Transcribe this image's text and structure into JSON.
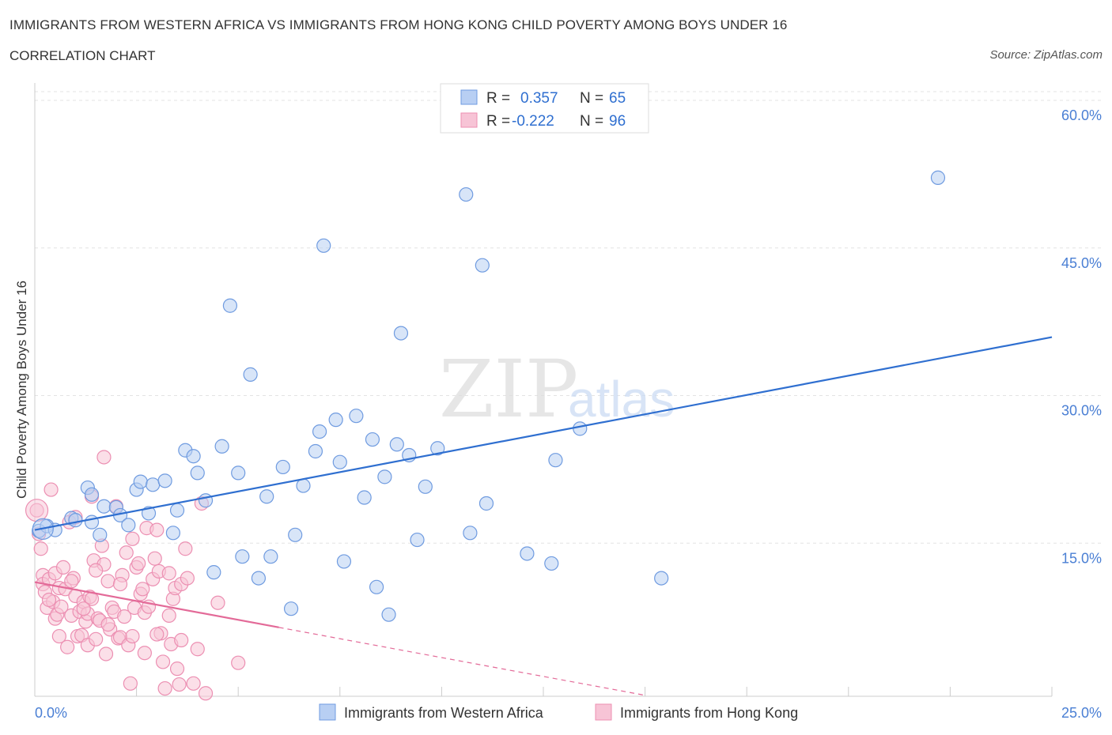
{
  "title": "IMMIGRANTS FROM WESTERN AFRICA VS IMMIGRANTS FROM HONG KONG CHILD POVERTY AMONG BOYS UNDER 16",
  "subtitle": "CORRELATION CHART",
  "source": "Source: ZipAtlas.com",
  "watermark": {
    "zip": "ZIP",
    "atlas": "atlas"
  },
  "chart_data": {
    "type": "scatter",
    "xlabel": "",
    "ylabel": "Child Poverty Among Boys Under 16",
    "xlim": [
      0,
      25
    ],
    "ylim": [
      0,
      60
    ],
    "x_tick_labels": [
      "0.0%",
      "25.0%"
    ],
    "y_ticks": [
      15,
      30,
      45,
      60
    ],
    "y_tick_labels": [
      "15.0%",
      "30.0%",
      "45.0%",
      "60.0%"
    ],
    "grid": true,
    "legend_stats": [
      {
        "r_label": "R =",
        "r_value": "0.357",
        "n_label": "N =",
        "n_value": "65"
      },
      {
        "r_label": "R =",
        "r_value": "-0.222",
        "n_label": "N =",
        "n_value": "96"
      }
    ],
    "series": [
      {
        "name": "Immigrants from Western Africa",
        "color": "#6f9be0",
        "fill": "#b8cff3",
        "trend": {
          "x": [
            0,
            25
          ],
          "y": [
            16.9,
            36.5
          ],
          "color": "#2f6fd0"
        },
        "points": [
          [
            0.1,
            16.8
          ],
          [
            0.3,
            17.3
          ],
          [
            0.5,
            16.9
          ],
          [
            0.9,
            18.1
          ],
          [
            1.0,
            17.9
          ],
          [
            1.3,
            21.2
          ],
          [
            1.4,
            20.5
          ],
          [
            1.4,
            17.7
          ],
          [
            1.6,
            16.4
          ],
          [
            1.7,
            19.3
          ],
          [
            2.0,
            19.2
          ],
          [
            2.1,
            18.4
          ],
          [
            2.3,
            17.4
          ],
          [
            2.5,
            21.0
          ],
          [
            2.6,
            21.8
          ],
          [
            2.8,
            18.6
          ],
          [
            2.9,
            21.5
          ],
          [
            3.2,
            21.9
          ],
          [
            3.4,
            16.6
          ],
          [
            3.5,
            18.9
          ],
          [
            3.7,
            25.0
          ],
          [
            3.9,
            24.4
          ],
          [
            4.0,
            22.7
          ],
          [
            4.2,
            19.9
          ],
          [
            4.4,
            12.6
          ],
          [
            4.6,
            25.4
          ],
          [
            4.8,
            39.7
          ],
          [
            5.0,
            22.7
          ],
          [
            5.1,
            14.2
          ],
          [
            5.3,
            32.7
          ],
          [
            5.5,
            12.0
          ],
          [
            5.7,
            20.3
          ],
          [
            5.8,
            14.2
          ],
          [
            6.1,
            23.3
          ],
          [
            6.3,
            8.9
          ],
          [
            6.4,
            16.4
          ],
          [
            6.6,
            21.4
          ],
          [
            6.9,
            24.9
          ],
          [
            7.0,
            26.9
          ],
          [
            7.1,
            45.8
          ],
          [
            7.4,
            28.1
          ],
          [
            7.5,
            23.8
          ],
          [
            7.6,
            13.7
          ],
          [
            7.9,
            28.5
          ],
          [
            8.1,
            20.2
          ],
          [
            8.3,
            26.1
          ],
          [
            8.4,
            11.1
          ],
          [
            8.6,
            22.3
          ],
          [
            8.7,
            8.3
          ],
          [
            8.9,
            25.6
          ],
          [
            9.0,
            36.9
          ],
          [
            9.2,
            24.5
          ],
          [
            9.4,
            15.9
          ],
          [
            9.6,
            21.3
          ],
          [
            9.9,
            25.2
          ],
          [
            10.6,
            51.0
          ],
          [
            10.7,
            16.6
          ],
          [
            11.0,
            43.8
          ],
          [
            11.1,
            19.6
          ],
          [
            12.1,
            14.5
          ],
          [
            12.7,
            13.5
          ],
          [
            12.8,
            24.0
          ],
          [
            13.4,
            27.2
          ],
          [
            15.4,
            12.0
          ],
          [
            22.2,
            52.7
          ]
        ]
      },
      {
        "name": "Immigrants from Hong Kong",
        "color": "#ec8fb2",
        "fill": "#f7c4d6",
        "trend": {
          "x": [
            0,
            6
          ],
          "y": [
            11.6,
            7.0
          ],
          "color": "#e36a98"
        },
        "trend_extension": {
          "x": [
            6,
            15
          ],
          "y": [
            7.0,
            0.1
          ]
        },
        "points": [
          [
            0.05,
            18.9
          ],
          [
            0.1,
            16.5
          ],
          [
            0.15,
            15.0
          ],
          [
            0.2,
            12.3
          ],
          [
            0.2,
            11.4
          ],
          [
            0.25,
            10.6
          ],
          [
            0.3,
            9.0
          ],
          [
            0.35,
            11.9
          ],
          [
            0.4,
            21.0
          ],
          [
            0.45,
            9.6
          ],
          [
            0.5,
            12.5
          ],
          [
            0.5,
            7.9
          ],
          [
            0.55,
            8.3
          ],
          [
            0.6,
            11.0
          ],
          [
            0.65,
            9.1
          ],
          [
            0.7,
            13.1
          ],
          [
            0.75,
            10.9
          ],
          [
            0.8,
            5.0
          ],
          [
            0.85,
            17.7
          ],
          [
            0.9,
            8.2
          ],
          [
            0.95,
            12.0
          ],
          [
            1.0,
            18.2
          ],
          [
            1.0,
            10.2
          ],
          [
            1.05,
            6.1
          ],
          [
            1.1,
            8.6
          ],
          [
            1.15,
            6.2
          ],
          [
            1.2,
            9.6
          ],
          [
            1.25,
            7.6
          ],
          [
            1.3,
            8.4
          ],
          [
            1.3,
            5.2
          ],
          [
            1.35,
            10.1
          ],
          [
            1.4,
            9.9
          ],
          [
            1.4,
            20.3
          ],
          [
            1.45,
            13.8
          ],
          [
            1.5,
            5.8
          ],
          [
            1.55,
            7.9
          ],
          [
            1.6,
            7.7
          ],
          [
            1.65,
            15.3
          ],
          [
            1.7,
            13.4
          ],
          [
            1.7,
            24.3
          ],
          [
            1.75,
            4.3
          ],
          [
            1.8,
            11.7
          ],
          [
            1.85,
            6.8
          ],
          [
            1.9,
            9.0
          ],
          [
            1.95,
            8.6
          ],
          [
            2.0,
            19.3
          ],
          [
            2.05,
            5.9
          ],
          [
            2.1,
            6.0
          ],
          [
            2.15,
            12.3
          ],
          [
            2.2,
            8.1
          ],
          [
            2.25,
            14.6
          ],
          [
            2.3,
            5.2
          ],
          [
            2.35,
            1.3
          ],
          [
            2.4,
            6.1
          ],
          [
            2.45,
            9.0
          ],
          [
            2.5,
            13.1
          ],
          [
            2.55,
            13.5
          ],
          [
            2.6,
            10.4
          ],
          [
            2.65,
            10.9
          ],
          [
            2.7,
            8.5
          ],
          [
            2.75,
            17.1
          ],
          [
            2.8,
            9.1
          ],
          [
            2.9,
            11.9
          ],
          [
            2.95,
            14.0
          ],
          [
            3.0,
            16.9
          ],
          [
            3.05,
            12.7
          ],
          [
            3.1,
            6.4
          ],
          [
            3.15,
            3.5
          ],
          [
            3.2,
            0.8
          ],
          [
            3.3,
            12.5
          ],
          [
            3.35,
            5.3
          ],
          [
            3.4,
            9.9
          ],
          [
            3.45,
            11.0
          ],
          [
            3.5,
            2.8
          ],
          [
            3.55,
            1.2
          ],
          [
            3.6,
            11.4
          ],
          [
            3.7,
            15.0
          ],
          [
            3.75,
            12.0
          ],
          [
            3.9,
            1.3
          ],
          [
            4.0,
            4.8
          ],
          [
            4.1,
            19.6
          ],
          [
            4.2,
            0.3
          ],
          [
            4.5,
            9.5
          ],
          [
            5.0,
            3.4
          ],
          [
            0.35,
            9.8
          ],
          [
            0.6,
            6.1
          ],
          [
            0.9,
            11.7
          ],
          [
            1.2,
            8.9
          ],
          [
            1.5,
            12.8
          ],
          [
            1.8,
            7.3
          ],
          [
            2.1,
            11.4
          ],
          [
            2.4,
            16.0
          ],
          [
            2.7,
            4.4
          ],
          [
            3.0,
            6.3
          ],
          [
            3.3,
            8.2
          ],
          [
            3.6,
            5.7
          ]
        ]
      }
    ]
  }
}
